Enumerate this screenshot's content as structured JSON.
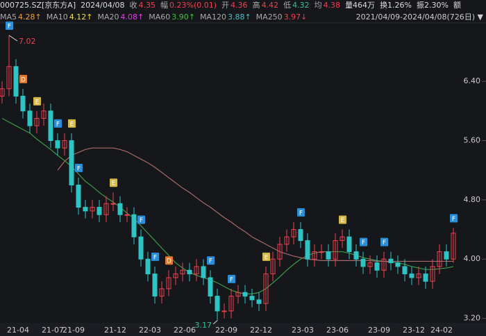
{
  "header": {
    "row1": [
      {
        "label": "000725.SZ[京东方A]",
        "color": "#dddddd"
      },
      {
        "label": "2024/04/08",
        "color": "#dddddd"
      },
      {
        "label": "收",
        "value": "4.35",
        "color": "#f04050"
      },
      {
        "label": "幅",
        "value": "0.23%(0.01)",
        "color": "#f04050"
      },
      {
        "label": "开",
        "value": "4.36",
        "color": "#f04050"
      },
      {
        "label": "高",
        "value": "4.42",
        "color": "#f04050"
      },
      {
        "label": "低",
        "value": "4.32",
        "color": "#2ec48a"
      },
      {
        "label": "均",
        "value": "4.38",
        "color": "#f04050"
      },
      {
        "label": "量464万",
        "color": "#dddddd"
      },
      {
        "label": "换1.26%",
        "color": "#dddddd"
      },
      {
        "label": "振2.30%",
        "color": "#dddddd"
      },
      {
        "label": "额",
        "color": "#dddddd"
      }
    ],
    "row2": [
      {
        "label": "MA5",
        "value": "4.28↑",
        "color": "#f0a030"
      },
      {
        "label": "MA10",
        "value": "4.12↑",
        "color": "#e8e040"
      },
      {
        "label": "MA20",
        "value": "4.08↑",
        "color": "#e040e0"
      },
      {
        "label": "MA60",
        "value": "3.90↑",
        "color": "#40c040"
      },
      {
        "label": "MA120",
        "value": "3.88↑",
        "color": "#40c0c0"
      },
      {
        "label": "MA250",
        "value": "3.97↓",
        "color": "#f04050"
      }
    ],
    "range": "2021/04/09-2024/04/08(726日)"
  },
  "chart_data": {
    "type": "candlestick",
    "up_color": "#f04050",
    "down_color": "#2ec4c4",
    "categories": [
      null,
      null,
      "21-04",
      null,
      null,
      null,
      null,
      "21-07",
      null,
      null,
      "21-09",
      null,
      null,
      null,
      null,
      null,
      "21-12",
      null,
      null,
      null,
      null,
      "22-03",
      null,
      null,
      null,
      null,
      "22-06",
      null,
      null,
      null,
      null,
      null,
      "22-09",
      null,
      null,
      null,
      null,
      "22-12",
      null,
      null,
      null,
      null,
      null,
      "23-03",
      null,
      null,
      null,
      null,
      "23-06",
      null,
      null,
      null,
      null,
      null,
      "23-09",
      null,
      null,
      null,
      null,
      "23-12",
      null,
      null,
      null,
      "24-02",
      null,
      null
    ],
    "open": [
      6.2,
      6.3,
      6.6,
      6.2,
      6.0,
      5.8,
      5.9,
      6.0,
      5.6,
      5.5,
      5.6,
      5.0,
      4.7,
      4.65,
      4.7,
      4.6,
      4.75,
      4.75,
      4.6,
      4.6,
      4.3,
      4.0,
      3.8,
      3.5,
      3.6,
      3.75,
      3.8,
      3.85,
      3.8,
      3.9,
      3.75,
      3.5,
      3.3,
      3.3,
      3.5,
      3.55,
      3.5,
      3.45,
      3.4,
      3.8,
      4.0,
      4.2,
      4.3,
      4.4,
      4.25,
      4.0,
      4.1,
      4.1,
      4.0,
      4.25,
      4.3,
      4.1,
      4.0,
      3.9,
      3.95,
      3.85,
      4.0,
      3.95,
      3.9,
      3.8,
      3.75,
      3.8,
      3.7,
      3.9,
      4.1,
      4.0
    ],
    "high": [
      6.4,
      7.02,
      6.7,
      6.3,
      6.1,
      6.0,
      6.1,
      6.1,
      5.7,
      5.7,
      5.7,
      5.1,
      4.8,
      4.8,
      4.8,
      4.85,
      4.9,
      4.85,
      4.7,
      4.7,
      4.4,
      4.1,
      3.9,
      3.7,
      3.85,
      3.9,
      3.95,
      3.95,
      4.0,
      4.0,
      3.85,
      3.6,
      3.4,
      3.6,
      3.65,
      3.65,
      3.6,
      3.55,
      3.9,
      4.1,
      4.3,
      4.4,
      4.5,
      4.5,
      4.35,
      4.2,
      4.2,
      4.2,
      4.35,
      4.4,
      4.4,
      4.2,
      4.1,
      4.05,
      4.05,
      4.1,
      4.1,
      4.05,
      4.0,
      3.9,
      3.9,
      3.9,
      4.0,
      4.2,
      4.2,
      4.42
    ],
    "low": [
      6.1,
      6.2,
      6.1,
      5.9,
      5.7,
      5.7,
      5.8,
      5.5,
      5.4,
      5.4,
      4.9,
      4.6,
      4.55,
      4.55,
      4.5,
      4.5,
      4.65,
      4.5,
      4.5,
      4.2,
      3.9,
      3.7,
      3.4,
      3.4,
      3.5,
      3.65,
      3.7,
      3.7,
      3.7,
      3.65,
      3.4,
      3.17,
      3.2,
      3.2,
      3.4,
      3.4,
      3.35,
      3.3,
      3.3,
      3.7,
      3.9,
      4.1,
      4.2,
      4.15,
      3.9,
      3.9,
      4.0,
      3.9,
      3.9,
      4.15,
      4.0,
      3.9,
      3.8,
      3.8,
      3.75,
      3.75,
      3.85,
      3.8,
      3.7,
      3.65,
      3.65,
      3.6,
      3.6,
      3.8,
      3.9,
      3.95
    ],
    "close": [
      6.3,
      6.6,
      6.2,
      6.0,
      5.8,
      5.9,
      6.0,
      5.6,
      5.5,
      5.6,
      5.0,
      4.7,
      4.65,
      4.7,
      4.6,
      4.75,
      4.75,
      4.6,
      4.6,
      4.3,
      4.0,
      3.8,
      3.5,
      3.6,
      3.75,
      3.8,
      3.85,
      3.8,
      3.9,
      3.75,
      3.5,
      3.3,
      3.3,
      3.5,
      3.55,
      3.5,
      3.45,
      3.4,
      3.8,
      4.0,
      4.2,
      4.3,
      4.4,
      4.25,
      4.0,
      4.1,
      4.1,
      4.0,
      4.25,
      4.3,
      4.1,
      4.0,
      3.9,
      3.95,
      3.85,
      4.0,
      3.95,
      3.9,
      3.8,
      3.75,
      3.8,
      3.7,
      3.9,
      4.1,
      4.0,
      4.35
    ],
    "series": [
      {
        "name": "MA60",
        "color": "#3a9a4a",
        "values": [
          5.9,
          5.85,
          5.8,
          5.75,
          5.7,
          5.62,
          5.55,
          5.48,
          5.4,
          5.33,
          5.25,
          5.15,
          5.05,
          4.98,
          4.9,
          4.83,
          4.77,
          4.7,
          4.62,
          4.55,
          4.45,
          4.35,
          4.25,
          4.15,
          4.05,
          3.95,
          3.88,
          3.82,
          3.78,
          3.75,
          3.72,
          3.68,
          3.63,
          3.58,
          3.55,
          3.53,
          3.53,
          3.55,
          3.6,
          3.68,
          3.76,
          3.85,
          3.93,
          4.0,
          4.05,
          4.08,
          4.1,
          4.1,
          4.1,
          4.1,
          4.08,
          4.05,
          4.02,
          4.0,
          3.98,
          3.97,
          3.96,
          3.95,
          3.93,
          3.9,
          3.88,
          3.86,
          3.86,
          3.87,
          3.88,
          3.9
        ]
      },
      {
        "name": "MA250",
        "color": "#a86a6a",
        "values": [
          null,
          null,
          null,
          null,
          null,
          null,
          null,
          null,
          5.2,
          5.32,
          5.4,
          5.44,
          5.48,
          5.5,
          5.5,
          5.5,
          5.5,
          5.48,
          5.45,
          5.4,
          5.35,
          5.3,
          5.24,
          5.17,
          5.1,
          5.03,
          4.96,
          4.9,
          4.83,
          4.76,
          4.7,
          4.63,
          4.56,
          4.5,
          4.43,
          4.37,
          4.3,
          4.25,
          4.2,
          4.15,
          4.1,
          4.07,
          4.04,
          4.02,
          4.0,
          3.99,
          3.98,
          3.98,
          3.98,
          3.98,
          3.98,
          3.98,
          3.98,
          3.98,
          3.97,
          3.97,
          3.97,
          3.97,
          3.97,
          3.97,
          3.97,
          3.97,
          3.97,
          3.97,
          3.97,
          3.97
        ]
      }
    ],
    "events": [
      {
        "label": "F",
        "at": 1,
        "color": "#2a8fd8"
      },
      {
        "label": "E",
        "at": 5,
        "color": "#d4b84a"
      },
      {
        "label": "D",
        "at": 3,
        "color": "#e07a30"
      },
      {
        "label": "F",
        "at": 8,
        "color": "#2a8fd8"
      },
      {
        "label": "E",
        "at": 10,
        "color": "#d4b84a"
      },
      {
        "label": "F",
        "at": 11,
        "color": "#2a8fd8"
      },
      {
        "label": "E",
        "at": 16,
        "color": "#d4b84a"
      },
      {
        "label": "F",
        "at": 20,
        "color": "#2a8fd8"
      },
      {
        "label": "F",
        "at": 22,
        "color": "#2a8fd8"
      },
      {
        "label": "D",
        "at": 24,
        "color": "#e07a30"
      },
      {
        "label": "F",
        "at": 30,
        "color": "#2a8fd8"
      },
      {
        "label": "F",
        "at": 33,
        "color": "#2a8fd8"
      },
      {
        "label": "E",
        "at": 38,
        "color": "#d4b84a"
      },
      {
        "label": "F",
        "at": 43,
        "color": "#2a8fd8"
      },
      {
        "label": "E",
        "at": 49,
        "color": "#d4b84a"
      },
      {
        "label": "F",
        "at": 52,
        "color": "#2a8fd8"
      },
      {
        "label": "F",
        "at": 55,
        "color": "#2a8fd8"
      },
      {
        "label": "F",
        "at": 65,
        "color": "#2a8fd8"
      }
    ],
    "ylim": [
      3.14,
      7.17
    ],
    "yticks": [
      {
        "value": 3.2,
        "label": "3.20"
      },
      {
        "value": 4.0,
        "label": "4.00"
      },
      {
        "value": 4.8,
        "label": "4.80"
      },
      {
        "value": 5.6,
        "label": "5.60"
      },
      {
        "value": 6.4,
        "label": "6.40"
      }
    ],
    "grid": false
  }
}
